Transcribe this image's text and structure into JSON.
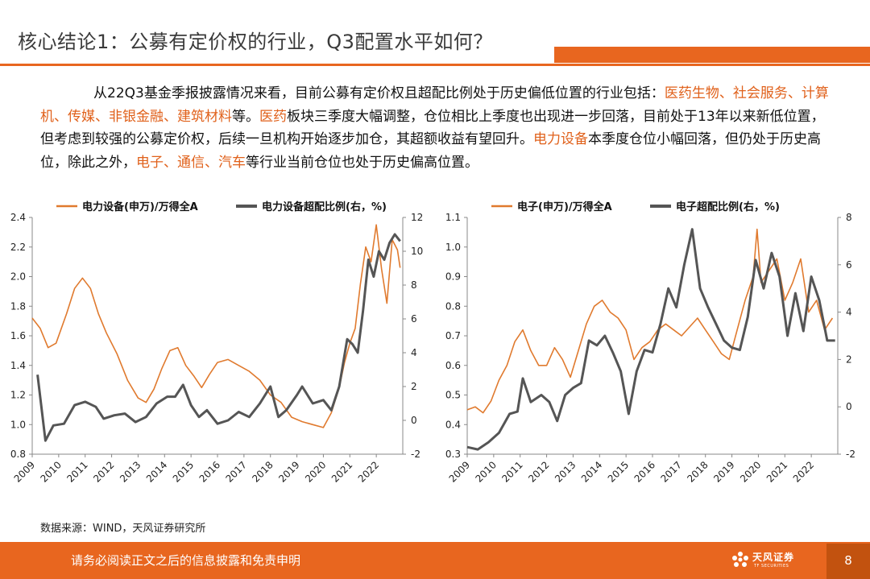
{
  "header": {
    "title": "核心结论1：公募有定价权的行业，Q3配置水平如何？"
  },
  "summary": {
    "p1_a": "从22Q3基金季报披露情况来看，目前公募有定价权且超配比例处于历史偏低位置的行业包括：",
    "p1_hl1": "医药生物、社会服务、计算机、传媒、非银金融、建筑材料",
    "p1_b": "等。",
    "p1_hl2": "医药",
    "p1_c": "板块三季度大幅调整，仓位相比上季度也出现进一步回落，目前处于13年以来新低位置，但考虑到较强的公募定价权，后续一旦机构开始逐步加仓，其超额收益有望回升。",
    "p1_hl3": "电力设备",
    "p1_d": "本季度仓位小幅回落，但仍处于历史高位，除此之外，",
    "p1_hl4": "电子、通信、汽车",
    "p1_e": "等行业当前仓位也处于历史偏高位置。"
  },
  "colors": {
    "accent": "#e8661f",
    "series_orange": "#e07a2e",
    "series_gray": "#555555"
  },
  "chart_data": [
    {
      "type": "line",
      "x_ticks": [
        "2009",
        "2010",
        "2011",
        "2012",
        "2013",
        "2014",
        "2015",
        "2016",
        "2017",
        "2018",
        "2019",
        "2020",
        "2021",
        "2022"
      ],
      "ylim_left": [
        0.8,
        2.4
      ],
      "left_ticks": [
        "0.8",
        "1.0",
        "1.2",
        "1.4",
        "1.6",
        "1.8",
        "2.0",
        "2.2",
        "2.4"
      ],
      "ylim_right": [
        -2,
        12
      ],
      "right_ticks": [
        "-2",
        "0",
        "2",
        "4",
        "6",
        "8",
        "10",
        "12"
      ],
      "series": [
        {
          "name": "电力设备(申万)/万得全A",
          "axis": "left",
          "color": "#e07a2e",
          "points": [
            [
              2009.0,
              1.72
            ],
            [
              2009.3,
              1.65
            ],
            [
              2009.6,
              1.52
            ],
            [
              2009.9,
              1.55
            ],
            [
              2010.3,
              1.75
            ],
            [
              2010.6,
              1.92
            ],
            [
              2010.9,
              1.99
            ],
            [
              2011.2,
              1.92
            ],
            [
              2011.5,
              1.75
            ],
            [
              2011.8,
              1.62
            ],
            [
              2012.2,
              1.48
            ],
            [
              2012.6,
              1.3
            ],
            [
              2013.0,
              1.18
            ],
            [
              2013.3,
              1.15
            ],
            [
              2013.6,
              1.24
            ],
            [
              2013.9,
              1.38
            ],
            [
              2014.2,
              1.5
            ],
            [
              2014.5,
              1.52
            ],
            [
              2014.8,
              1.4
            ],
            [
              2015.1,
              1.33
            ],
            [
              2015.4,
              1.25
            ],
            [
              2015.7,
              1.34
            ],
            [
              2016.0,
              1.42
            ],
            [
              2016.4,
              1.44
            ],
            [
              2016.8,
              1.4
            ],
            [
              2017.2,
              1.36
            ],
            [
              2017.6,
              1.3
            ],
            [
              2018.0,
              1.2
            ],
            [
              2018.4,
              1.15
            ],
            [
              2018.8,
              1.05
            ],
            [
              2019.2,
              1.02
            ],
            [
              2019.6,
              1.0
            ],
            [
              2020.0,
              0.98
            ],
            [
              2020.3,
              1.08
            ],
            [
              2020.6,
              1.25
            ],
            [
              2020.8,
              1.42
            ],
            [
              2021.0,
              1.55
            ],
            [
              2021.2,
              1.65
            ],
            [
              2021.4,
              1.95
            ],
            [
              2021.6,
              2.2
            ],
            [
              2021.8,
              2.1
            ],
            [
              2022.0,
              2.35
            ],
            [
              2022.2,
              2.05
            ],
            [
              2022.4,
              1.82
            ],
            [
              2022.6,
              2.25
            ],
            [
              2022.8,
              2.18
            ],
            [
              2022.9,
              2.06
            ]
          ]
        },
        {
          "name": "电力设备超配比例(右，%)",
          "axis": "right",
          "color": "#555555",
          "points": [
            [
              2009.2,
              2.7
            ],
            [
              2009.5,
              -1.2
            ],
            [
              2009.8,
              -0.3
            ],
            [
              2010.2,
              -0.2
            ],
            [
              2010.6,
              0.9
            ],
            [
              2011.0,
              1.1
            ],
            [
              2011.4,
              0.8
            ],
            [
              2011.7,
              0.1
            ],
            [
              2012.1,
              0.3
            ],
            [
              2012.5,
              0.4
            ],
            [
              2012.9,
              -0.1
            ],
            [
              2013.3,
              0.2
            ],
            [
              2013.7,
              1.0
            ],
            [
              2014.1,
              1.4
            ],
            [
              2014.4,
              1.4
            ],
            [
              2014.7,
              2.1
            ],
            [
              2015.0,
              0.9
            ],
            [
              2015.3,
              0.2
            ],
            [
              2015.6,
              0.6
            ],
            [
              2016.0,
              -0.2
            ],
            [
              2016.4,
              0.0
            ],
            [
              2016.8,
              0.5
            ],
            [
              2017.2,
              0.2
            ],
            [
              2017.6,
              1.0
            ],
            [
              2018.0,
              2.0
            ],
            [
              2018.3,
              0.2
            ],
            [
              2018.6,
              0.6
            ],
            [
              2019.0,
              1.5
            ],
            [
              2019.2,
              2.0
            ],
            [
              2019.6,
              1.0
            ],
            [
              2020.0,
              1.2
            ],
            [
              2020.3,
              0.6
            ],
            [
              2020.6,
              2.0
            ],
            [
              2020.9,
              4.8
            ],
            [
              2021.1,
              4.5
            ],
            [
              2021.3,
              4.0
            ],
            [
              2021.5,
              6.5
            ],
            [
              2021.7,
              9.5
            ],
            [
              2021.9,
              8.5
            ],
            [
              2022.1,
              10.0
            ],
            [
              2022.3,
              9.5
            ],
            [
              2022.5,
              10.5
            ],
            [
              2022.7,
              11.0
            ],
            [
              2022.9,
              10.6
            ]
          ]
        }
      ]
    },
    {
      "type": "line",
      "x_ticks": [
        "2009",
        "2010",
        "2011",
        "2012",
        "2013",
        "2014",
        "2015",
        "2016",
        "2017",
        "2018",
        "2019",
        "2020",
        "2021",
        "2022"
      ],
      "ylim_left": [
        0.3,
        1.1
      ],
      "left_ticks": [
        "0.3",
        "0.4",
        "0.5",
        "0.6",
        "0.7",
        "0.8",
        "0.9",
        "1.0",
        "1.1"
      ],
      "ylim_right": [
        -2,
        8
      ],
      "right_ticks": [
        "-2",
        "0",
        "2",
        "4",
        "6",
        "8"
      ],
      "series": [
        {
          "name": "电子(申万)/万得全A",
          "axis": "left",
          "color": "#e07a2e",
          "points": [
            [
              2009.0,
              0.45
            ],
            [
              2009.3,
              0.46
            ],
            [
              2009.6,
              0.44
            ],
            [
              2009.9,
              0.48
            ],
            [
              2010.2,
              0.55
            ],
            [
              2010.5,
              0.6
            ],
            [
              2010.8,
              0.68
            ],
            [
              2011.1,
              0.72
            ],
            [
              2011.4,
              0.65
            ],
            [
              2011.7,
              0.6
            ],
            [
              2012.0,
              0.6
            ],
            [
              2012.3,
              0.66
            ],
            [
              2012.6,
              0.62
            ],
            [
              2012.9,
              0.56
            ],
            [
              2013.2,
              0.65
            ],
            [
              2013.5,
              0.74
            ],
            [
              2013.8,
              0.8
            ],
            [
              2014.1,
              0.82
            ],
            [
              2014.4,
              0.78
            ],
            [
              2014.7,
              0.76
            ],
            [
              2015.0,
              0.72
            ],
            [
              2015.3,
              0.62
            ],
            [
              2015.6,
              0.66
            ],
            [
              2015.9,
              0.68
            ],
            [
              2016.2,
              0.72
            ],
            [
              2016.5,
              0.74
            ],
            [
              2016.8,
              0.72
            ],
            [
              2017.1,
              0.7
            ],
            [
              2017.4,
              0.73
            ],
            [
              2017.7,
              0.76
            ],
            [
              2018.0,
              0.72
            ],
            [
              2018.3,
              0.68
            ],
            [
              2018.6,
              0.64
            ],
            [
              2018.9,
              0.62
            ],
            [
              2019.2,
              0.72
            ],
            [
              2019.5,
              0.82
            ],
            [
              2019.8,
              0.9
            ],
            [
              2019.95,
              1.06
            ],
            [
              2020.1,
              0.88
            ],
            [
              2020.4,
              0.92
            ],
            [
              2020.7,
              0.96
            ],
            [
              2021.0,
              0.82
            ],
            [
              2021.3,
              0.88
            ],
            [
              2021.6,
              0.96
            ],
            [
              2021.9,
              0.78
            ],
            [
              2022.2,
              0.82
            ],
            [
              2022.5,
              0.72
            ],
            [
              2022.8,
              0.76
            ]
          ]
        },
        {
          "name": "电子超配比例(右，%)",
          "axis": "right",
          "color": "#555555",
          "points": [
            [
              2009.0,
              -1.7
            ],
            [
              2009.4,
              -1.8
            ],
            [
              2009.8,
              -1.5
            ],
            [
              2010.2,
              -1.1
            ],
            [
              2010.6,
              -0.3
            ],
            [
              2010.9,
              -0.2
            ],
            [
              2011.1,
              1.2
            ],
            [
              2011.4,
              0.2
            ],
            [
              2011.8,
              0.5
            ],
            [
              2012.1,
              0.2
            ],
            [
              2012.4,
              -0.6
            ],
            [
              2012.7,
              0.5
            ],
            [
              2013.0,
              0.8
            ],
            [
              2013.3,
              1.0
            ],
            [
              2013.6,
              2.8
            ],
            [
              2013.9,
              2.6
            ],
            [
              2014.2,
              3.0
            ],
            [
              2014.5,
              2.3
            ],
            [
              2014.8,
              1.5
            ],
            [
              2015.1,
              -0.3
            ],
            [
              2015.4,
              1.5
            ],
            [
              2015.7,
              2.4
            ],
            [
              2016.0,
              2.3
            ],
            [
              2016.3,
              3.5
            ],
            [
              2016.6,
              5.0
            ],
            [
              2016.9,
              4.2
            ],
            [
              2017.2,
              6.0
            ],
            [
              2017.5,
              7.5
            ],
            [
              2017.8,
              5.0
            ],
            [
              2018.1,
              4.2
            ],
            [
              2018.4,
              3.5
            ],
            [
              2018.7,
              2.8
            ],
            [
              2019.0,
              2.5
            ],
            [
              2019.3,
              2.4
            ],
            [
              2019.6,
              3.8
            ],
            [
              2019.9,
              6.2
            ],
            [
              2020.2,
              5.0
            ],
            [
              2020.5,
              6.5
            ],
            [
              2020.8,
              5.5
            ],
            [
              2021.1,
              3.0
            ],
            [
              2021.4,
              4.8
            ],
            [
              2021.7,
              3.2
            ],
            [
              2022.0,
              5.5
            ],
            [
              2022.3,
              4.5
            ],
            [
              2022.6,
              2.8
            ],
            [
              2022.9,
              2.8
            ]
          ]
        }
      ]
    }
  ],
  "source": "数据来源：WIND，天风证券研究所",
  "footer": {
    "disclaimer": "请务必阅读正文之后的信息披露和免责申明",
    "logo_text": "天风证券",
    "logo_sub": "TF SECURITIES",
    "page_number": "8"
  }
}
